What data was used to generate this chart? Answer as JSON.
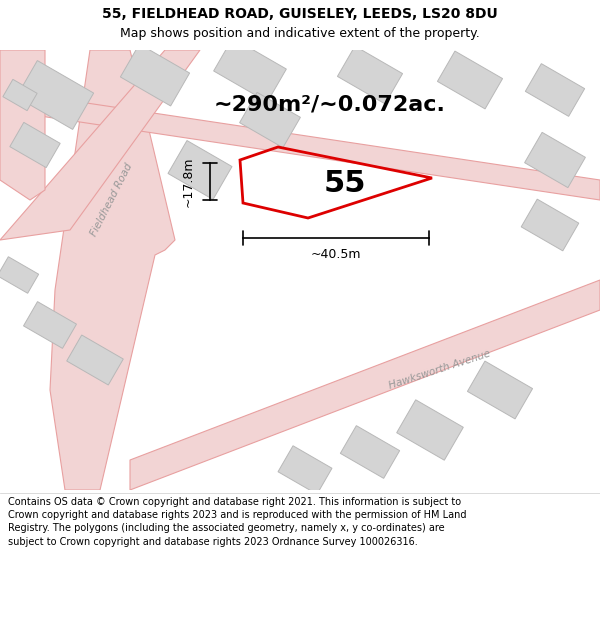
{
  "title_line1": "55, FIELDHEAD ROAD, GUISELEY, LEEDS, LS20 8DU",
  "title_line2": "Map shows position and indicative extent of the property.",
  "area_text": "~290m²/~0.072ac.",
  "property_number": "55",
  "dim_width": "~40.5m",
  "dim_height": "~17.8m",
  "street_label1": "Fieldhead Road",
  "street_label2": "Hawksworth Avenue",
  "footer_text": "Contains OS data © Crown copyright and database right 2021. This information is subject to Crown copyright and database rights 2023 and is reproduced with the permission of HM Land Registry. The polygons (including the associated geometry, namely x, y co-ordinates) are subject to Crown copyright and database rights 2023 Ordnance Survey 100026316.",
  "map_bg": "#efefeb",
  "road_fill": "#f2d4d4",
  "road_edge": "#e8a0a0",
  "building_fill": "#d4d4d4",
  "building_edge": "#b8b8b8",
  "plot_color": "#dd0000",
  "title_fontsize": 10,
  "subtitle_fontsize": 9,
  "area_fontsize": 16,
  "prop_num_fontsize": 22,
  "dim_fontsize": 9,
  "footer_fontsize": 7,
  "street_fontsize": 7.5
}
